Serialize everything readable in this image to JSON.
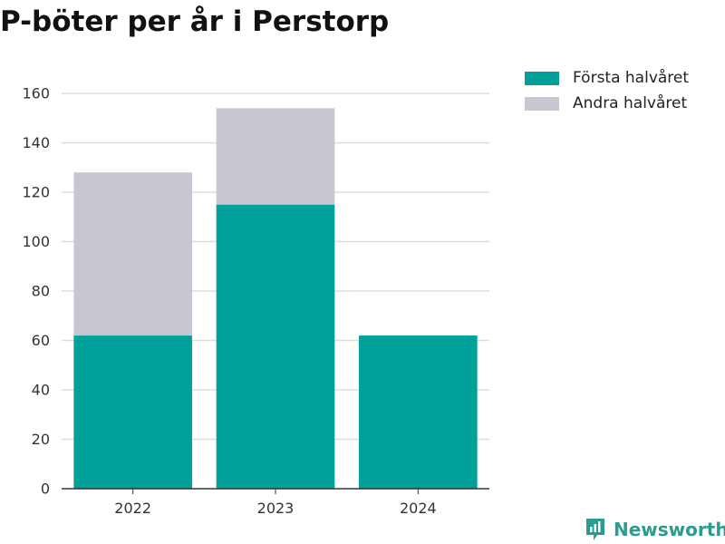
{
  "title": "P-böter per år i Perstorp",
  "colors": {
    "first_half": "#00a19a",
    "second_half": "#c8c7d1",
    "brand": "#2b9c8f",
    "grid": "#dddddd",
    "axis": "#333333"
  },
  "chart_data": {
    "type": "bar",
    "stacked": true,
    "categories": [
      "2022",
      "2023",
      "2024"
    ],
    "series": [
      {
        "name": "Första halvåret",
        "values": [
          62,
          115,
          62
        ]
      },
      {
        "name": "Andra halvåret",
        "values": [
          66,
          39,
          0
        ]
      }
    ],
    "ylim": [
      0,
      160
    ],
    "yticks": [
      0,
      20,
      40,
      60,
      80,
      100,
      120,
      140,
      160
    ],
    "grid": true,
    "legend_position": "top-right",
    "xlabel": "",
    "ylabel": ""
  },
  "brand": {
    "name": "Newsworthy",
    "icon": "newsworthy-logo-icon"
  }
}
